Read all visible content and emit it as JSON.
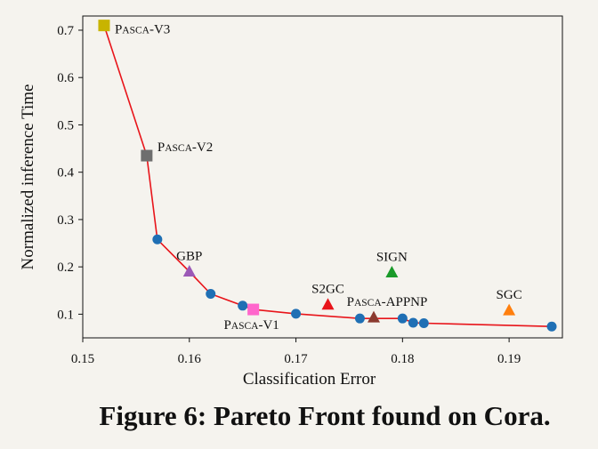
{
  "chart_data": {
    "type": "scatter",
    "xlabel": "Classification Error",
    "ylabel": "Normalized inference Time",
    "xlim": [
      0.15,
      0.195
    ],
    "ylim": [
      0.05,
      0.73
    ],
    "xticks": [
      "0.15",
      "0.16",
      "0.17",
      "0.18",
      "0.19"
    ],
    "xtick_values": [
      0.15,
      0.16,
      0.17,
      0.18,
      0.19
    ],
    "yticks": [
      "0.1",
      "0.2",
      "0.3",
      "0.4",
      "0.5",
      "0.6",
      "0.7"
    ],
    "ytick_values": [
      0.1,
      0.2,
      0.3,
      0.4,
      0.5,
      0.6,
      0.7
    ],
    "grid": false,
    "pareto_front": {
      "line_color": "#e8141a",
      "marker_color": "#1f6fb4",
      "x": [
        0.152,
        0.156,
        0.157,
        0.16,
        0.162,
        0.165,
        0.166,
        0.17,
        0.176,
        0.1773,
        0.18,
        0.181,
        0.182,
        0.194
      ],
      "y": [
        0.71,
        0.435,
        0.258,
        0.19,
        0.143,
        0.118,
        0.11,
        0.101,
        0.091,
        0.091,
        0.091,
        0.082,
        0.081,
        0.074
      ]
    },
    "front_markers": {
      "x": [
        0.157,
        0.162,
        0.165,
        0.17,
        0.176,
        0.18,
        0.181,
        0.182,
        0.194
      ],
      "y": [
        0.258,
        0.143,
        0.118,
        0.101,
        0.091,
        0.091,
        0.082,
        0.081,
        0.074
      ]
    },
    "models": [
      {
        "name": "PASCA-V3",
        "prefix": "P",
        "smallcaps": "ASCA",
        "suffix": "-V3",
        "x": 0.152,
        "y": 0.71,
        "marker": "square",
        "color": "#c8b400",
        "label_pos": "right"
      },
      {
        "name": "PASCA-V2",
        "prefix": "P",
        "smallcaps": "ASCA",
        "suffix": "-V2",
        "x": 0.156,
        "y": 0.435,
        "marker": "square",
        "color": "#6e6e6e",
        "label_pos": "upper-right"
      },
      {
        "name": "GBP",
        "prefix": "GBP",
        "smallcaps": "",
        "suffix": "",
        "x": 0.16,
        "y": 0.19,
        "marker": "triangle",
        "color": "#9b59b6",
        "label_pos": "above"
      },
      {
        "name": "PASCA-V1",
        "prefix": "P",
        "smallcaps": "ASCA",
        "suffix": "-V1",
        "x": 0.166,
        "y": 0.11,
        "marker": "square",
        "color": "#ff66cc",
        "label_pos": "below"
      },
      {
        "name": "S2GC",
        "prefix": "S2GC",
        "smallcaps": "",
        "suffix": "",
        "x": 0.173,
        "y": 0.12,
        "marker": "triangle",
        "color": "#e8141a",
        "label_pos": "above"
      },
      {
        "name": "PASCA-APPNP",
        "prefix": "P",
        "smallcaps": "ASCA",
        "suffix": "-APPNP",
        "x": 0.1773,
        "y": 0.093,
        "marker": "triangle",
        "color": "#8b3a2f",
        "label_pos": "above"
      },
      {
        "name": "SIGN",
        "prefix": "SIGN",
        "smallcaps": "",
        "suffix": "",
        "x": 0.179,
        "y": 0.188,
        "marker": "triangle",
        "color": "#1a9a2a",
        "label_pos": "above"
      },
      {
        "name": "SGC",
        "prefix": "SGC",
        "smallcaps": "",
        "suffix": "",
        "x": 0.19,
        "y": 0.108,
        "marker": "triangle",
        "color": "#ff7f0e",
        "label_pos": "above"
      }
    ]
  },
  "caption": "Figure 6: Pareto Front found on Cora."
}
